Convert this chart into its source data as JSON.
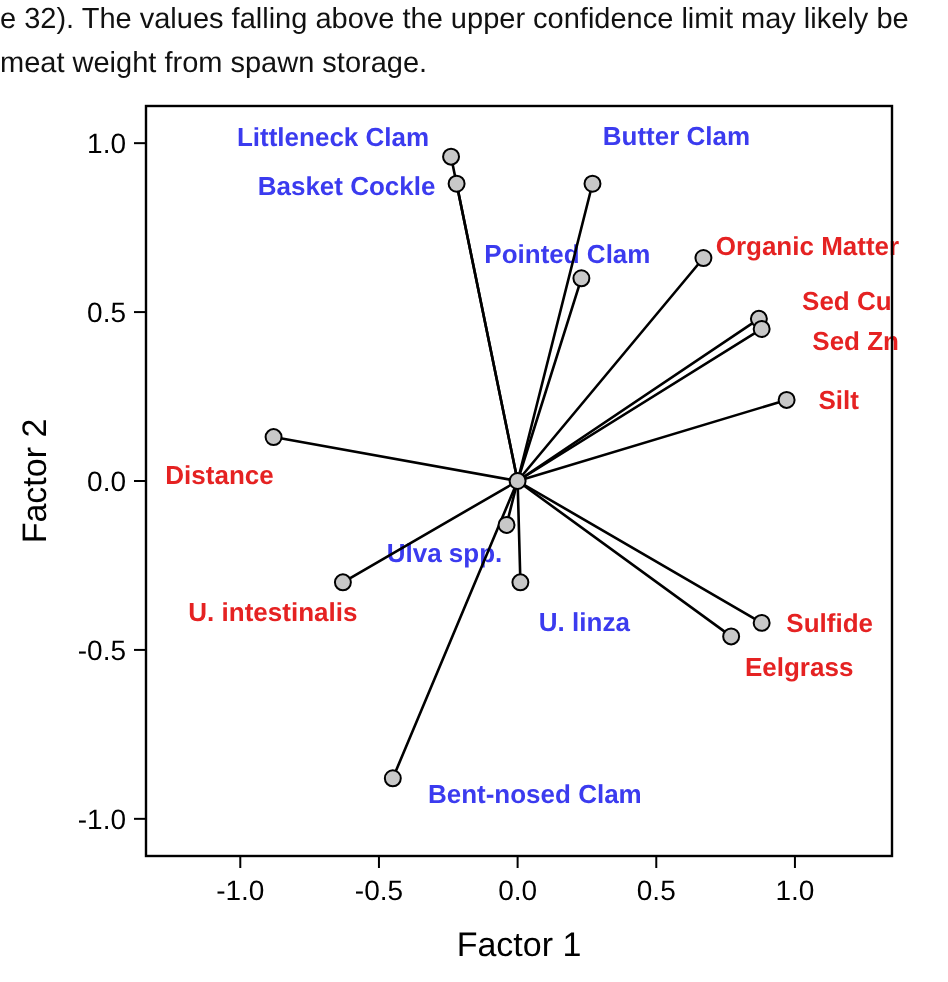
{
  "chart_data": {
    "type": "scatter",
    "xlabel": "Factor 1",
    "ylabel": "Factor 2",
    "xlim": [
      -1.34,
      1.35
    ],
    "ylim": [
      -1.11,
      1.11
    ],
    "xticks": [
      {
        "value": -1,
        "label": "-1.0"
      },
      {
        "value": -0.5,
        "label": "-0.5"
      },
      {
        "value": 0,
        "label": "0.0"
      },
      {
        "value": 0.5,
        "label": "0.5"
      },
      {
        "value": 1,
        "label": "1.0"
      }
    ],
    "yticks": [
      {
        "value": -1,
        "label": "-1.0"
      },
      {
        "value": -0.5,
        "label": "-0.5"
      },
      {
        "value": 0,
        "label": "0.0"
      },
      {
        "value": 0.5,
        "label": "0.5"
      },
      {
        "value": 1,
        "label": "1.0"
      }
    ],
    "grid": false,
    "marker": "circle",
    "series": [
      {
        "type": "line",
        "marker": "none",
        "color": "#000000",
        "x": [
          0,
          -0.24
        ],
        "values": [
          0,
          0.96
        ]
      },
      {
        "type": "line",
        "marker": "none",
        "color": "#000000",
        "x": [
          0,
          -0.22
        ],
        "values": [
          0,
          0.88
        ]
      },
      {
        "type": "line",
        "marker": "none",
        "color": "#000000",
        "x": [
          0,
          0.27
        ],
        "values": [
          0,
          0.88
        ]
      },
      {
        "type": "line",
        "marker": "none",
        "color": "#000000",
        "x": [
          0,
          0.23
        ],
        "values": [
          0,
          0.6
        ]
      },
      {
        "type": "line",
        "marker": "none",
        "color": "#000000",
        "x": [
          0,
          0.67
        ],
        "values": [
          0,
          0.66
        ]
      },
      {
        "type": "line",
        "marker": "none",
        "color": "#000000",
        "x": [
          0,
          0.87
        ],
        "values": [
          0,
          0.48
        ]
      },
      {
        "type": "line",
        "marker": "none",
        "color": "#000000",
        "x": [
          0,
          0.88
        ],
        "values": [
          0,
          0.45
        ]
      },
      {
        "type": "line",
        "marker": "none",
        "color": "#000000",
        "x": [
          0,
          0.97
        ],
        "values": [
          0,
          0.24
        ]
      },
      {
        "type": "line",
        "marker": "none",
        "color": "#000000",
        "x": [
          0,
          -0.88
        ],
        "values": [
          0,
          0.13
        ]
      },
      {
        "type": "line",
        "marker": "none",
        "color": "#000000",
        "x": [
          0,
          -0.04
        ],
        "values": [
          0,
          -0.13
        ]
      },
      {
        "type": "line",
        "marker": "none",
        "color": "#000000",
        "x": [
          0,
          -0.63
        ],
        "values": [
          0,
          -0.3
        ]
      },
      {
        "type": "line",
        "marker": "none",
        "color": "#000000",
        "x": [
          0,
          0.01
        ],
        "values": [
          0,
          -0.3
        ]
      },
      {
        "type": "line",
        "marker": "none",
        "color": "#000000",
        "x": [
          0,
          0.88
        ],
        "values": [
          0,
          -0.42
        ]
      },
      {
        "type": "line",
        "marker": "none",
        "color": "#000000",
        "x": [
          0,
          0.77
        ],
        "values": [
          0,
          -0.46
        ]
      },
      {
        "type": "line",
        "marker": "none",
        "color": "#000000",
        "x": [
          0,
          -0.45
        ],
        "values": [
          0,
          -0.88
        ]
      },
      {
        "color": "#c8c8c8",
        "x": [
          -0.24,
          -0.22,
          0.27,
          0.23,
          0.67,
          0.87,
          0.88,
          0.97,
          -0.88,
          -0.04,
          -0.63,
          0.01,
          0.88,
          0.77,
          -0.45,
          0
        ],
        "values": [
          0.96,
          0.88,
          0.88,
          0.6,
          0.66,
          0.48,
          0.45,
          0.24,
          0.13,
          -0.13,
          -0.3,
          -0.3,
          -0.42,
          -0.46,
          -0.88,
          0
        ]
      }
    ],
    "annotations": [
      {
        "text": "Littleneck Clam",
        "x": -0.24,
        "y": 0.96
      },
      {
        "text": "Basket Cockle",
        "x": -0.22,
        "y": 0.88
      },
      {
        "text": "Butter Clam",
        "x": 0.27,
        "y": 0.88
      },
      {
        "text": "Pointed Clam",
        "x": 0.23,
        "y": 0.6
      },
      {
        "text": "Organic Matter",
        "x": 0.67,
        "y": 0.66
      },
      {
        "text": "Sed Cu",
        "x": 0.87,
        "y": 0.48
      },
      {
        "text": "Sed Zn",
        "x": 0.88,
        "y": 0.45
      },
      {
        "text": "Silt",
        "x": 0.97,
        "y": 0.24
      },
      {
        "text": "Distance",
        "x": -0.88,
        "y": 0.13
      },
      {
        "text": "Ulva spp.",
        "x": -0.04,
        "y": -0.13
      },
      {
        "text": "U. intestinalis",
        "x": -0.63,
        "y": -0.3
      },
      {
        "text": "U. linza",
        "x": 0.01,
        "y": -0.3
      },
      {
        "text": "Sulfide",
        "x": 0.88,
        "y": -0.42
      },
      {
        "text": "Eelgrass",
        "x": 0.77,
        "y": -0.46
      },
      {
        "text": "Bent-nosed Clam",
        "x": -0.45,
        "y": -0.88
      },
      "e 32). The values falling above the upper confidence limit may likely be",
      "meat weight from spawn storage."
    ],
    "colors": [
      "#3b3bef",
      "#3b3bef",
      "#3b3bef",
      "#3b3bef",
      "#e52222",
      "#e52222",
      "#e52222",
      "#e52222",
      "#e52222",
      "#3b3bef",
      "#e52222",
      "#3b3bef",
      "#e52222",
      "#e52222",
      "#3b3bef"
    ]
  }
}
